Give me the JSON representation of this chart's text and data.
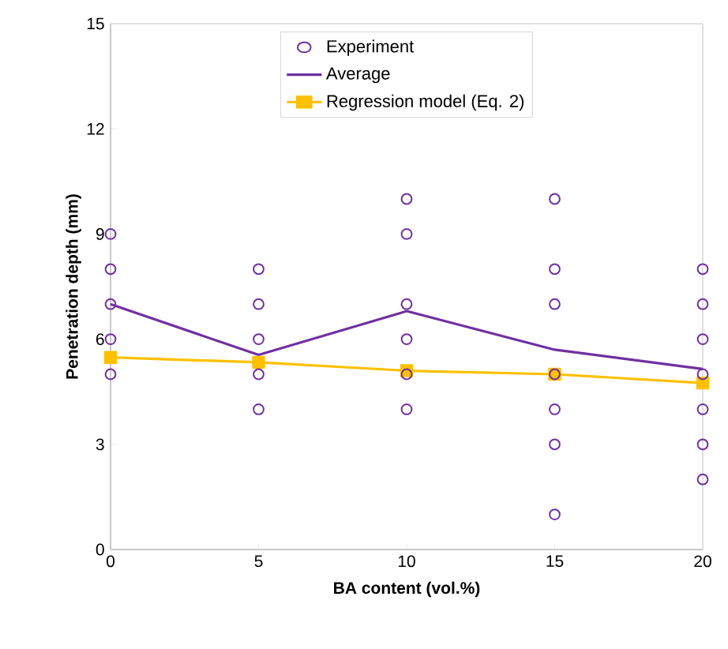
{
  "chart_data": {
    "type": "scatter",
    "xlabel": "BA content (vol.%)",
    "ylabel": "Penetration depth (mm)",
    "xlim": [
      0,
      20
    ],
    "ylim": [
      0,
      15
    ],
    "xticks": [
      0,
      5,
      10,
      15,
      20
    ],
    "yticks": [
      0,
      3,
      6,
      9,
      12,
      15
    ],
    "grid": false,
    "legend": "top",
    "series": [
      {
        "name": "Experiment",
        "marker": "circle",
        "color": "#7030a0",
        "x": [
          0,
          0,
          0,
          0,
          0,
          5,
          5,
          5,
          5,
          5,
          10,
          10,
          10,
          10,
          10,
          10,
          15,
          15,
          15,
          15,
          15,
          15,
          15,
          20,
          20,
          20,
          20,
          20,
          20,
          20
        ],
        "values": [
          9,
          8,
          7,
          6,
          5,
          8,
          7,
          6,
          5,
          4,
          10,
          9,
          7,
          6,
          5,
          4,
          10,
          8,
          7,
          5,
          4,
          3,
          1,
          8,
          7,
          6,
          5,
          4,
          3,
          2
        ]
      },
      {
        "name": "Average",
        "type": "line",
        "marker": "none",
        "color": "#7030a0",
        "x": [
          0,
          5,
          10,
          15,
          20
        ],
        "values": [
          7.0,
          5.55,
          6.8,
          5.7,
          5.15
        ]
      },
      {
        "name": "Regression model (Eq. 2)",
        "type": "line",
        "marker": "square",
        "color": "#ffc000",
        "x": [
          0,
          5,
          10,
          15,
          20
        ],
        "values": [
          5.48,
          5.34,
          5.1,
          5.0,
          4.75
        ]
      }
    ]
  }
}
